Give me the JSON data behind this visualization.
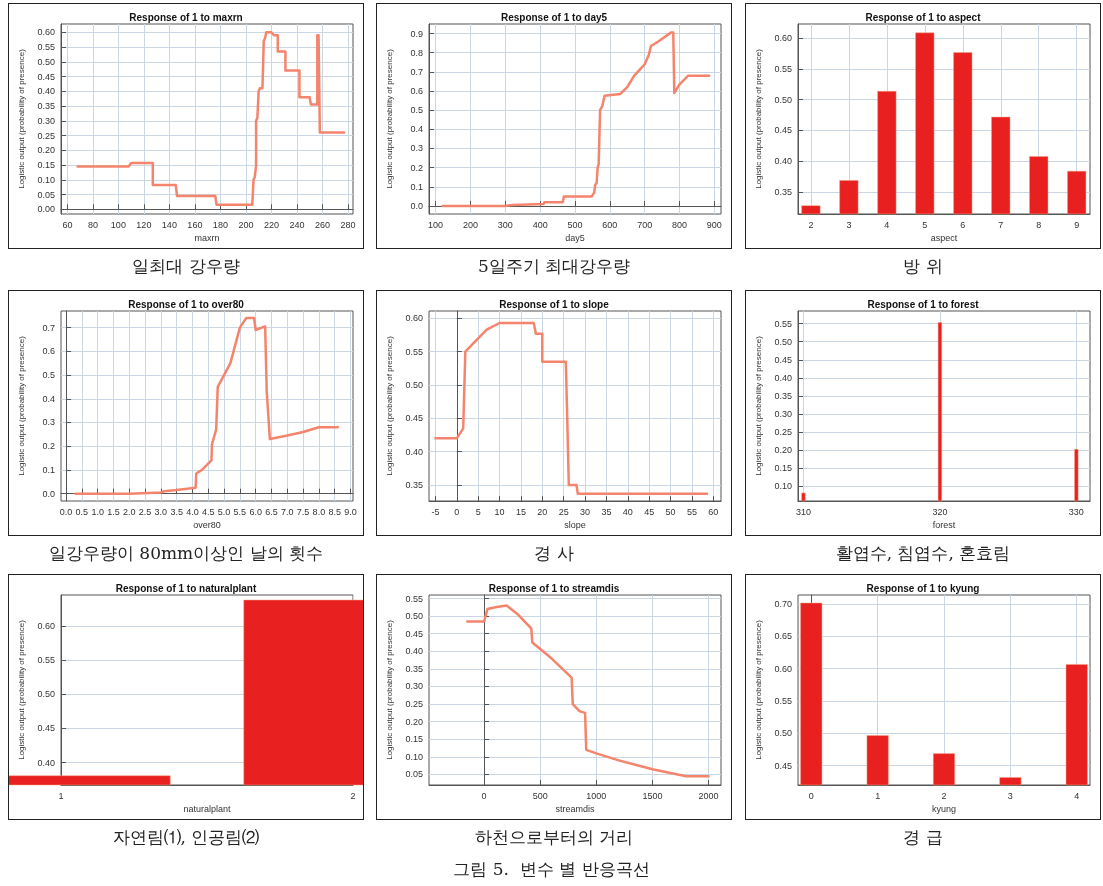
{
  "chart_data": [
    {
      "type": "line",
      "title": "Response of 1 to maxrn",
      "xlabel": "maxrn",
      "ylabel": "Logistic output (probability of presence)",
      "annotations": [
        "일최대 강우량"
      ],
      "color": "#f4846c",
      "marker": "none",
      "grid": true,
      "xlim": [
        55,
        284
      ],
      "xticks": [
        60,
        80,
        100,
        120,
        140,
        160,
        180,
        200,
        220,
        240,
        260,
        280
      ],
      "ylim": [
        -0.016,
        0.628
      ],
      "yticks": [
        {
          "value": 0,
          "label": "0.00"
        },
        0.05,
        {
          "value": 0.1,
          "label": "0.10"
        },
        0.15,
        {
          "value": 0.2,
          "label": "0.20"
        },
        0.25,
        {
          "value": 0.3,
          "label": "0.30"
        },
        0.35,
        {
          "value": 0.4,
          "label": "0.40"
        },
        0.45,
        {
          "value": 0.5,
          "label": "0.50"
        },
        0.55,
        {
          "value": 0.6,
          "label": "0.60"
        }
      ],
      "x": [
        68,
        108,
        110,
        127,
        127,
        145,
        146,
        176,
        177,
        205,
        206,
        207,
        208,
        208,
        209,
        210,
        211,
        213,
        214,
        215,
        216,
        220,
        222,
        225,
        225,
        231,
        231,
        242,
        242,
        250,
        251,
        256,
        256,
        257,
        258,
        277
      ],
      "values": [
        0.145,
        0.145,
        0.157,
        0.157,
        0.082,
        0.082,
        0.045,
        0.045,
        0.015,
        0.015,
        0.1,
        0.11,
        0.15,
        0.3,
        0.31,
        0.4,
        0.41,
        0.41,
        0.57,
        0.58,
        0.6,
        0.6,
        0.59,
        0.59,
        0.535,
        0.535,
        0.47,
        0.47,
        0.38,
        0.38,
        0.355,
        0.355,
        0.59,
        0.59,
        0.26,
        0.26
      ]
    },
    {
      "type": "line",
      "title": "Response of 1 to day5",
      "xlabel": "day5",
      "ylabel": "Logistic output (probability of presence)",
      "annotations": [
        "5일주기 최대강우량"
      ],
      "color": "#f4846c",
      "marker": "none",
      "grid": true,
      "xlim": [
        81,
        919
      ],
      "xticks": [
        100,
        200,
        300,
        400,
        500,
        600,
        700,
        800,
        900
      ],
      "ylim": [
        -0.042,
        0.95
      ],
      "yticks": [
        {
          "value": 0,
          "label": "0.0"
        },
        0.1,
        0.2,
        0.3,
        0.4,
        0.5,
        0.6,
        0.7,
        0.8,
        0.9
      ],
      "x": [
        120,
        300,
        320,
        410,
        412,
        465,
        468,
        548,
        555,
        558,
        562,
        565,
        568,
        572,
        578,
        585,
        630,
        650,
        670,
        690,
        700,
        712,
        718,
        740,
        775,
        782,
        785,
        800,
        825,
        885
      ],
      "values": [
        0,
        0,
        0.005,
        0.01,
        0.02,
        0.02,
        0.05,
        0.05,
        0.07,
        0.11,
        0.12,
        0.2,
        0.22,
        0.5,
        0.52,
        0.575,
        0.585,
        0.62,
        0.68,
        0.72,
        0.74,
        0.79,
        0.835,
        0.86,
        0.905,
        0.905,
        0.59,
        0.635,
        0.68,
        0.68
      ]
    },
    {
      "type": "bar",
      "title": "Response of 1 to aspect",
      "xlabel": "aspect",
      "ylabel": "Logistic output (probability of presence)",
      "annotations": [
        "방 위"
      ],
      "color": "#e82020",
      "grid": true,
      "xlim": [
        1.66,
        9.35
      ],
      "xticks": [
        2,
        3,
        4,
        5,
        6,
        7,
        8,
        9
      ],
      "ylim": [
        0.314,
        0.623
      ],
      "yticks": [
        0.35,
        {
          "value": 0.4,
          "label": "0.40"
        },
        0.45,
        {
          "value": 0.5,
          "label": "0.50"
        },
        0.55,
        {
          "value": 0.6,
          "label": "0.60"
        }
      ],
      "x": [
        2,
        3,
        4,
        5,
        6,
        7,
        8,
        9
      ],
      "values": [
        0.328,
        0.369,
        0.514,
        0.609,
        0.577,
        0.472,
        0.408,
        0.384
      ]
    },
    {
      "type": "line",
      "title": "Response of 1 to over80",
      "xlabel": "over80",
      "ylabel": "Logistic output (probability of presence)",
      "annotations": [
        "일강우량이 80mm이상인 날의 횟수"
      ],
      "color": "#f4846c",
      "marker": "none",
      "grid": true,
      "xlim": [
        -0.16,
        9.08
      ],
      "xticks": [
        {
          "value": 0,
          "label": "0.0"
        },
        0.5,
        {
          "value": 1,
          "label": "1.0"
        },
        1.5,
        {
          "value": 2,
          "label": "2.0"
        },
        2.5,
        {
          "value": 3,
          "label": "3.0"
        },
        3.5,
        {
          "value": 4,
          "label": "4.0"
        },
        4.5,
        {
          "value": 5,
          "label": "5.0"
        },
        5.5,
        {
          "value": 6,
          "label": "6.0"
        },
        6.5,
        {
          "value": 7,
          "label": "7.0"
        },
        7.5,
        {
          "value": 8,
          "label": "8.0"
        },
        8.5,
        {
          "value": 9,
          "label": "9.0"
        }
      ],
      "ylim": [
        -0.031,
        0.77
      ],
      "yticks": [
        {
          "value": 0,
          "label": "0.0"
        },
        0.1,
        0.2,
        0.3,
        0.4,
        0.5,
        0.6,
        0.7
      ],
      "x": [
        0.3,
        2.0,
        3.0,
        3.1,
        3.5,
        4.1,
        4.12,
        4.3,
        4.6,
        4.62,
        4.75,
        4.8,
        5.0,
        5.2,
        5.3,
        5.5,
        5.7,
        5.95,
        6.0,
        6.3,
        6.35,
        6.45,
        7.0,
        7.5,
        8.0,
        8.6
      ],
      "values": [
        0,
        0,
        0.005,
        0.01,
        0.015,
        0.025,
        0.085,
        0.1,
        0.14,
        0.21,
        0.27,
        0.45,
        0.5,
        0.55,
        0.6,
        0.7,
        0.74,
        0.74,
        0.69,
        0.705,
        0.43,
        0.23,
        0.245,
        0.26,
        0.28,
        0.28
      ]
    },
    {
      "type": "line",
      "title": "Response of 1 to slope",
      "xlabel": "slope",
      "ylabel": "Logistic output (probability of presence)",
      "annotations": [
        "경 사"
      ],
      "color": "#f4846c",
      "marker": "none",
      "grid": true,
      "xlim": [
        -6.5,
        61.8
      ],
      "xticks": [
        -5,
        0,
        5,
        10,
        15,
        20,
        25,
        30,
        35,
        40,
        45,
        50,
        55,
        60
      ],
      "ylim": [
        0.326,
        0.611
      ],
      "yticks": [
        0.35,
        {
          "value": 0.4,
          "label": "0.40"
        },
        0.45,
        {
          "value": 0.5,
          "label": "0.50"
        },
        0.55,
        {
          "value": 0.6,
          "label": "0.60"
        }
      ],
      "x": [
        -5,
        0,
        1.5,
        2,
        5,
        7,
        10,
        18,
        18.5,
        20,
        20,
        25.5,
        25.8,
        26.2,
        28,
        28.3,
        58.5
      ],
      "values": [
        0.42,
        0.42,
        0.435,
        0.55,
        0.57,
        0.583,
        0.593,
        0.593,
        0.577,
        0.577,
        0.535,
        0.535,
        0.46,
        0.35,
        0.35,
        0.337,
        0.337
      ]
    },
    {
      "type": "bar",
      "title": "Response of 1 to forest",
      "xlabel": "forest",
      "ylabel": "Logistic output (probability of presence)",
      "annotations": [
        "활엽수, 침엽수, 혼효림"
      ],
      "color": "#e82020",
      "grid": true,
      "xlim": [
        309.6,
        331
      ],
      "xticks": [
        310,
        320,
        330
      ],
      "ylim": [
        0.059,
        0.585
      ],
      "yticks": [
        {
          "value": 0.1,
          "label": "0.10"
        },
        0.15,
        {
          "value": 0.2,
          "label": "0.20"
        },
        0.25,
        {
          "value": 0.3,
          "label": "0.30"
        },
        0.35,
        {
          "value": 0.4,
          "label": "0.40"
        },
        0.45,
        {
          "value": 0.5,
          "label": "0.50"
        },
        0.55
      ],
      "x": [
        310,
        320,
        330
      ],
      "values": [
        0.082,
        0.554,
        0.203
      ]
    },
    {
      "type": "bar",
      "title": "Response of 1 to naturalplant",
      "xlabel": "naturalplant",
      "ylabel": "Logistic output (probability of presence)",
      "annotations": [
        "자연림⑴, 인공림⑵"
      ],
      "color": "#e82020",
      "grid": true,
      "xlim": [
        1,
        2
      ],
      "xticks": [
        1,
        2
      ],
      "ylim": [
        0.367,
        0.646
      ],
      "yticks": [
        {
          "value": 0.4,
          "label": "0.40"
        },
        0.45,
        {
          "value": 0.5,
          "label": "0.50"
        },
        0.55,
        {
          "value": 0.6,
          "label": "0.60"
        }
      ],
      "x": [
        1,
        2
      ],
      "values": [
        0.381,
        0.639
      ]
    },
    {
      "type": "line",
      "title": "Response of 1 to streamdis",
      "xlabel": "streamdis",
      "ylabel": "Logistic output (probability of presence)",
      "annotations": [
        "하천으로부터의 거리"
      ],
      "color": "#f4846c",
      "marker": "none",
      "grid": true,
      "xlim": [
        -491,
        2111
      ],
      "xticks": [
        0,
        500,
        1000,
        1500,
        2000
      ],
      "ylim": [
        0.02,
        0.56
      ],
      "yticks": [
        0.05,
        {
          "value": 0.1,
          "label": "0.10"
        },
        0.15,
        {
          "value": 0.2,
          "label": "0.20"
        },
        0.25,
        {
          "value": 0.3,
          "label": "0.30"
        },
        0.35,
        {
          "value": 0.4,
          "label": "0.40"
        },
        0.45,
        {
          "value": 0.5,
          "label": "0.50"
        },
        0.55
      ],
      "x": [
        -150,
        0,
        30,
        100,
        200,
        300,
        420,
        430,
        600,
        780,
        790,
        850,
        900,
        910,
        1000,
        1200,
        1500,
        1800,
        2000
      ],
      "values": [
        0.485,
        0.485,
        0.52,
        0.525,
        0.53,
        0.505,
        0.465,
        0.425,
        0.38,
        0.325,
        0.25,
        0.23,
        0.225,
        0.12,
        0.11,
        0.09,
        0.065,
        0.045,
        0.045
      ]
    },
    {
      "type": "bar",
      "title": "Response of 1 to kyung",
      "xlabel": "kyung",
      "ylabel": "Logistic output (probability of presence)",
      "annotations": [
        "경 급",
        "그림 5.  변수 별 반응곡선"
      ],
      "color": "#e82020",
      "grid": true,
      "xlim": [
        -0.2,
        4.2
      ],
      "xticks": [
        0,
        1,
        2,
        3,
        4
      ],
      "ylim": [
        0.42,
        0.714
      ],
      "yticks": [
        0.45,
        {
          "value": 0.5,
          "label": "0.50"
        },
        0.55,
        {
          "value": 0.6,
          "label": "0.60"
        },
        0.65,
        {
          "value": 0.7,
          "label": "0.70"
        }
      ],
      "x": [
        0,
        1,
        2,
        3,
        4
      ],
      "values": [
        0.702,
        0.497,
        0.469,
        0.432,
        0.607
      ]
    }
  ]
}
